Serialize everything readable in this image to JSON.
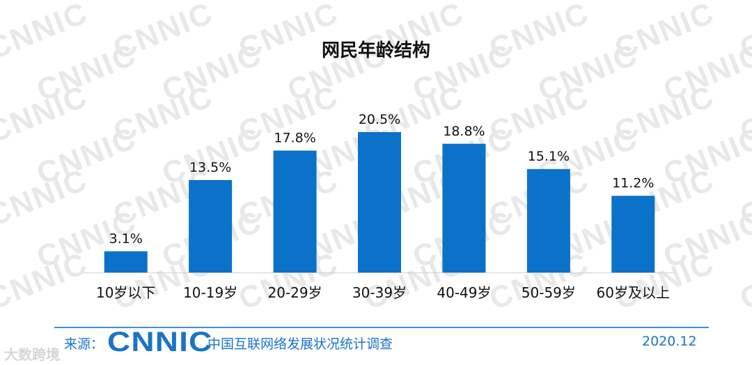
{
  "chart_data": {
    "type": "bar",
    "title": "网民年龄结构",
    "categories": [
      "10岁以下",
      "10-19岁",
      "20-29岁",
      "30-39岁",
      "40-49岁",
      "50-59岁",
      "60岁及以上"
    ],
    "values": [
      3.1,
      13.5,
      17.8,
      20.5,
      18.8,
      15.1,
      11.2
    ],
    "value_labels": [
      "3.1%",
      "13.5%",
      "17.8%",
      "20.5%",
      "18.8%",
      "15.1%",
      "11.2%"
    ],
    "ylim": [
      0,
      20.5
    ],
    "grid": false,
    "bar_color": "#0a72c8",
    "label_color": "#111111"
  },
  "footer": {
    "source_label": "来源：",
    "source_logo": "CNNIC",
    "source_name": "中国互联网络发展状况统计调查",
    "date": "2020.12"
  },
  "watermark": "CNNIC",
  "corner_mark": "大数跨境",
  "accent_color": "#1a73c8"
}
